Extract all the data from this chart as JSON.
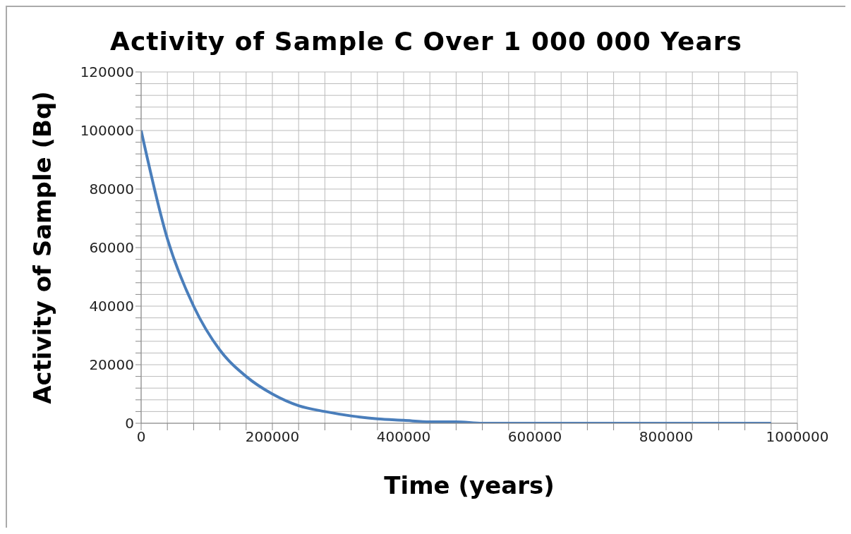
{
  "chart_data": {
    "type": "line",
    "title": "Activity of Sample C Over 1 000 000 Years",
    "xlabel": "Time (years)",
    "ylabel": "Activity of Sample (Bq)",
    "x": [
      0,
      40000,
      80000,
      120000,
      160000,
      200000,
      240000,
      280000,
      320000,
      360000,
      400000,
      440000,
      480000,
      520000,
      560000,
      600000,
      640000,
      680000,
      720000,
      760000,
      800000,
      840000,
      880000,
      920000,
      960000
    ],
    "series": [
      {
        "color": "#4a7ebb",
        "values": [
          100000,
          63000,
          40000,
          25000,
          16000,
          10000,
          6000,
          4000,
          2500,
          1500,
          1000,
          500,
          500,
          0,
          0,
          0,
          0,
          0,
          0,
          0,
          0,
          0,
          0,
          0,
          0
        ]
      }
    ],
    "xlim": [
      0,
      1000000
    ],
    "xticks": [
      0,
      {
        "value": 40000,
        "label": null
      },
      {
        "value": 80000,
        "label": null
      },
      {
        "value": 120000,
        "label": null
      },
      {
        "value": 160000,
        "label": null
      },
      200000,
      {
        "value": 240000,
        "label": null
      },
      {
        "value": 280000,
        "label": null
      },
      {
        "value": 320000,
        "label": null
      },
      {
        "value": 360000,
        "label": null
      },
      400000,
      {
        "value": 440000,
        "label": null
      },
      {
        "value": 480000,
        "label": null
      },
      {
        "value": 520000,
        "label": null
      },
      {
        "value": 560000,
        "label": null
      },
      600000,
      {
        "value": 640000,
        "label": null
      },
      {
        "value": 680000,
        "label": null
      },
      {
        "value": 720000,
        "label": null
      },
      {
        "value": 760000,
        "label": null
      },
      800000,
      {
        "value": 840000,
        "label": null
      },
      {
        "value": 880000,
        "label": null
      },
      {
        "value": 920000,
        "label": null
      },
      {
        "value": 960000,
        "label": null
      },
      1000000
    ],
    "ylim": [
      0,
      120000
    ],
    "yticks": [
      0,
      {
        "value": 4000,
        "label": null
      },
      {
        "value": 8000,
        "label": null
      },
      {
        "value": 12000,
        "label": null
      },
      {
        "value": 16000,
        "label": null
      },
      20000,
      {
        "value": 24000,
        "label": null
      },
      {
        "value": 28000,
        "label": null
      },
      {
        "value": 32000,
        "label": null
      },
      {
        "value": 36000,
        "label": null
      },
      40000,
      {
        "value": 44000,
        "label": null
      },
      {
        "value": 48000,
        "label": null
      },
      {
        "value": 52000,
        "label": null
      },
      {
        "value": 56000,
        "label": null
      },
      60000,
      {
        "value": 64000,
        "label": null
      },
      {
        "value": 68000,
        "label": null
      },
      {
        "value": 72000,
        "label": null
      },
      {
        "value": 76000,
        "label": null
      },
      80000,
      {
        "value": 84000,
        "label": null
      },
      {
        "value": 88000,
        "label": null
      },
      {
        "value": 92000,
        "label": null
      },
      {
        "value": 96000,
        "label": null
      },
      100000,
      {
        "value": 104000,
        "label": null
      },
      {
        "value": 108000,
        "label": null
      },
      {
        "value": 112000,
        "label": null
      },
      {
        "value": 116000,
        "label": null
      },
      120000
    ],
    "grid": true,
    "marker": "none",
    "line_style": "solid"
  }
}
